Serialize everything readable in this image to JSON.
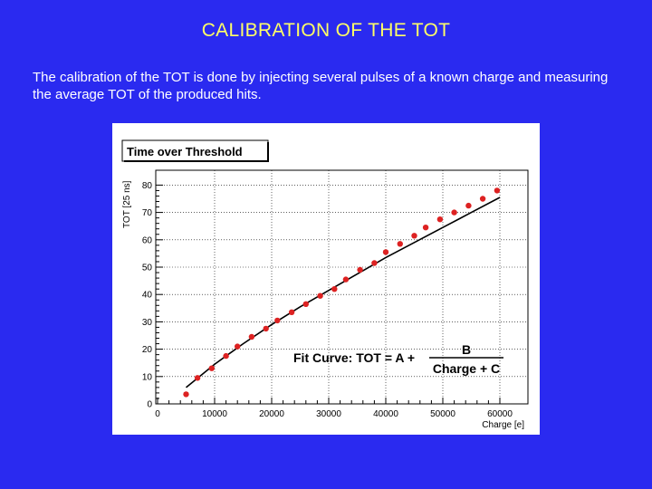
{
  "slide": {
    "title": "CALIBRATION OF THE TOT",
    "body": "The calibration of the TOT is done by injecting several pulses of a known charge and measuring the average TOT of the produced hits."
  },
  "colors": {
    "background": "#2a2af0",
    "title": "#ffff66",
    "marker": "#dd2222",
    "fit_line": "#000000"
  },
  "chart_data": {
    "type": "scatter",
    "title": "Time over Threshold",
    "xlabel": "Charge [e]",
    "ylabel": "TOT [25 ns]",
    "xlim": [
      0,
      65000
    ],
    "ylim": [
      0,
      85
    ],
    "x_ticks": [
      0,
      10000,
      20000,
      30000,
      40000,
      50000,
      60000
    ],
    "x_tick_labels": [
      "0",
      "10000",
      "20000",
      "30000",
      "40000",
      "50000",
      "60000"
    ],
    "y_ticks": [
      0,
      10,
      20,
      30,
      40,
      50,
      60,
      70,
      80
    ],
    "y_tick_labels": [
      "0",
      "10",
      "20",
      "30",
      "40",
      "50",
      "60",
      "70",
      "80"
    ],
    "grid": true,
    "series": [
      {
        "x": [
          5000,
          7000,
          9500,
          12000,
          14000,
          16500,
          19000,
          21000,
          23500,
          26000,
          28500,
          31000,
          33000,
          35500,
          38000,
          40000,
          42500,
          45000,
          47000,
          49500,
          52000,
          54500,
          57000,
          59500
        ],
        "y": [
          3.5,
          9.5,
          13,
          17.5,
          21,
          24.5,
          27.5,
          30.5,
          33.5,
          36.5,
          39.5,
          42,
          45.5,
          49,
          51.5,
          55.5,
          58.5,
          61.5,
          64.5,
          67.5,
          70,
          72.5,
          75,
          78
        ]
      }
    ],
    "fit": {
      "label_prefix": "Fit Curve:  TOT = A +",
      "numerator": "B",
      "denominator": "Charge + C",
      "x": [
        5000,
        10000,
        15000,
        20000,
        25000,
        30000,
        35000,
        40000,
        45000,
        50000,
        55000,
        60000
      ],
      "y": [
        6,
        14.5,
        22,
        29,
        35.5,
        41.5,
        47.5,
        53.5,
        59,
        64.5,
        70,
        75.5
      ]
    }
  }
}
